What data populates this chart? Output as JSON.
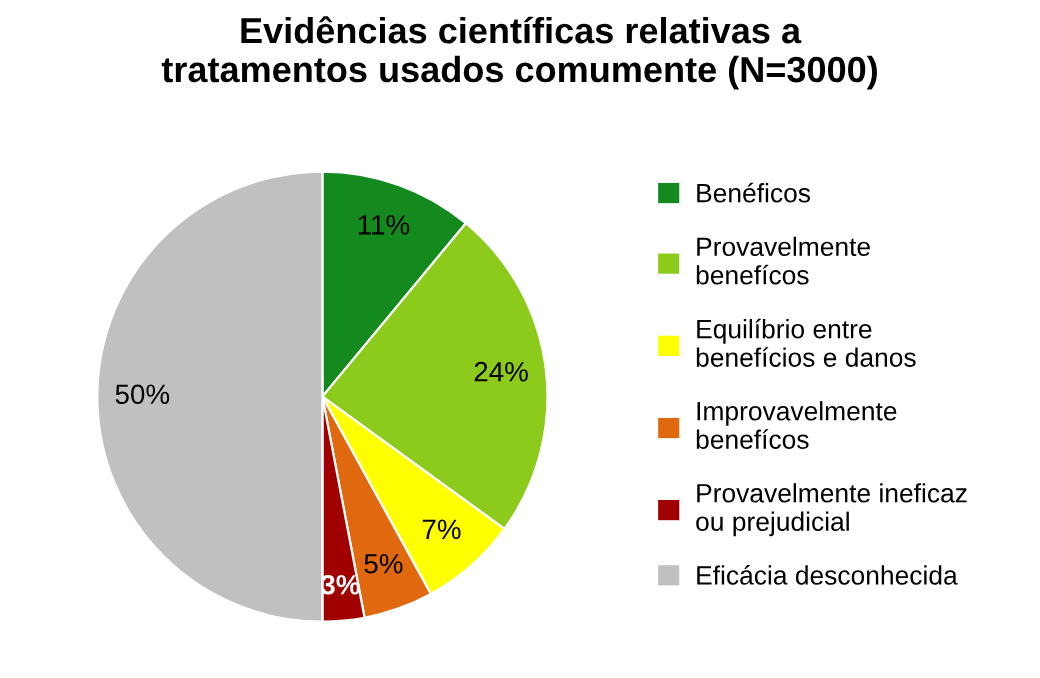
{
  "chart_data": {
    "type": "pie",
    "title": "Evidências científicas relativas a\ntratamentos usados comumente (N=3000)",
    "categories": [
      "Benéficos",
      "Provavelmente\nbenefícos",
      "Equilíbrio entre\nbenefícios e danos",
      "Improvavelmente\nbenefícos",
      "Provavelmente ineficaz\nou prejudicial",
      "Eficácia desconhecida"
    ],
    "values": [
      11,
      24,
      7,
      5,
      3,
      50
    ],
    "colors": [
      "#148a1e",
      "#8ccb1c",
      "#ffff00",
      "#e0680e",
      "#a00000",
      "#c0c0c0"
    ],
    "value_labels": [
      "11%",
      "24%",
      "7%",
      "5%",
      "3%",
      "50%"
    ],
    "legend": "right"
  }
}
